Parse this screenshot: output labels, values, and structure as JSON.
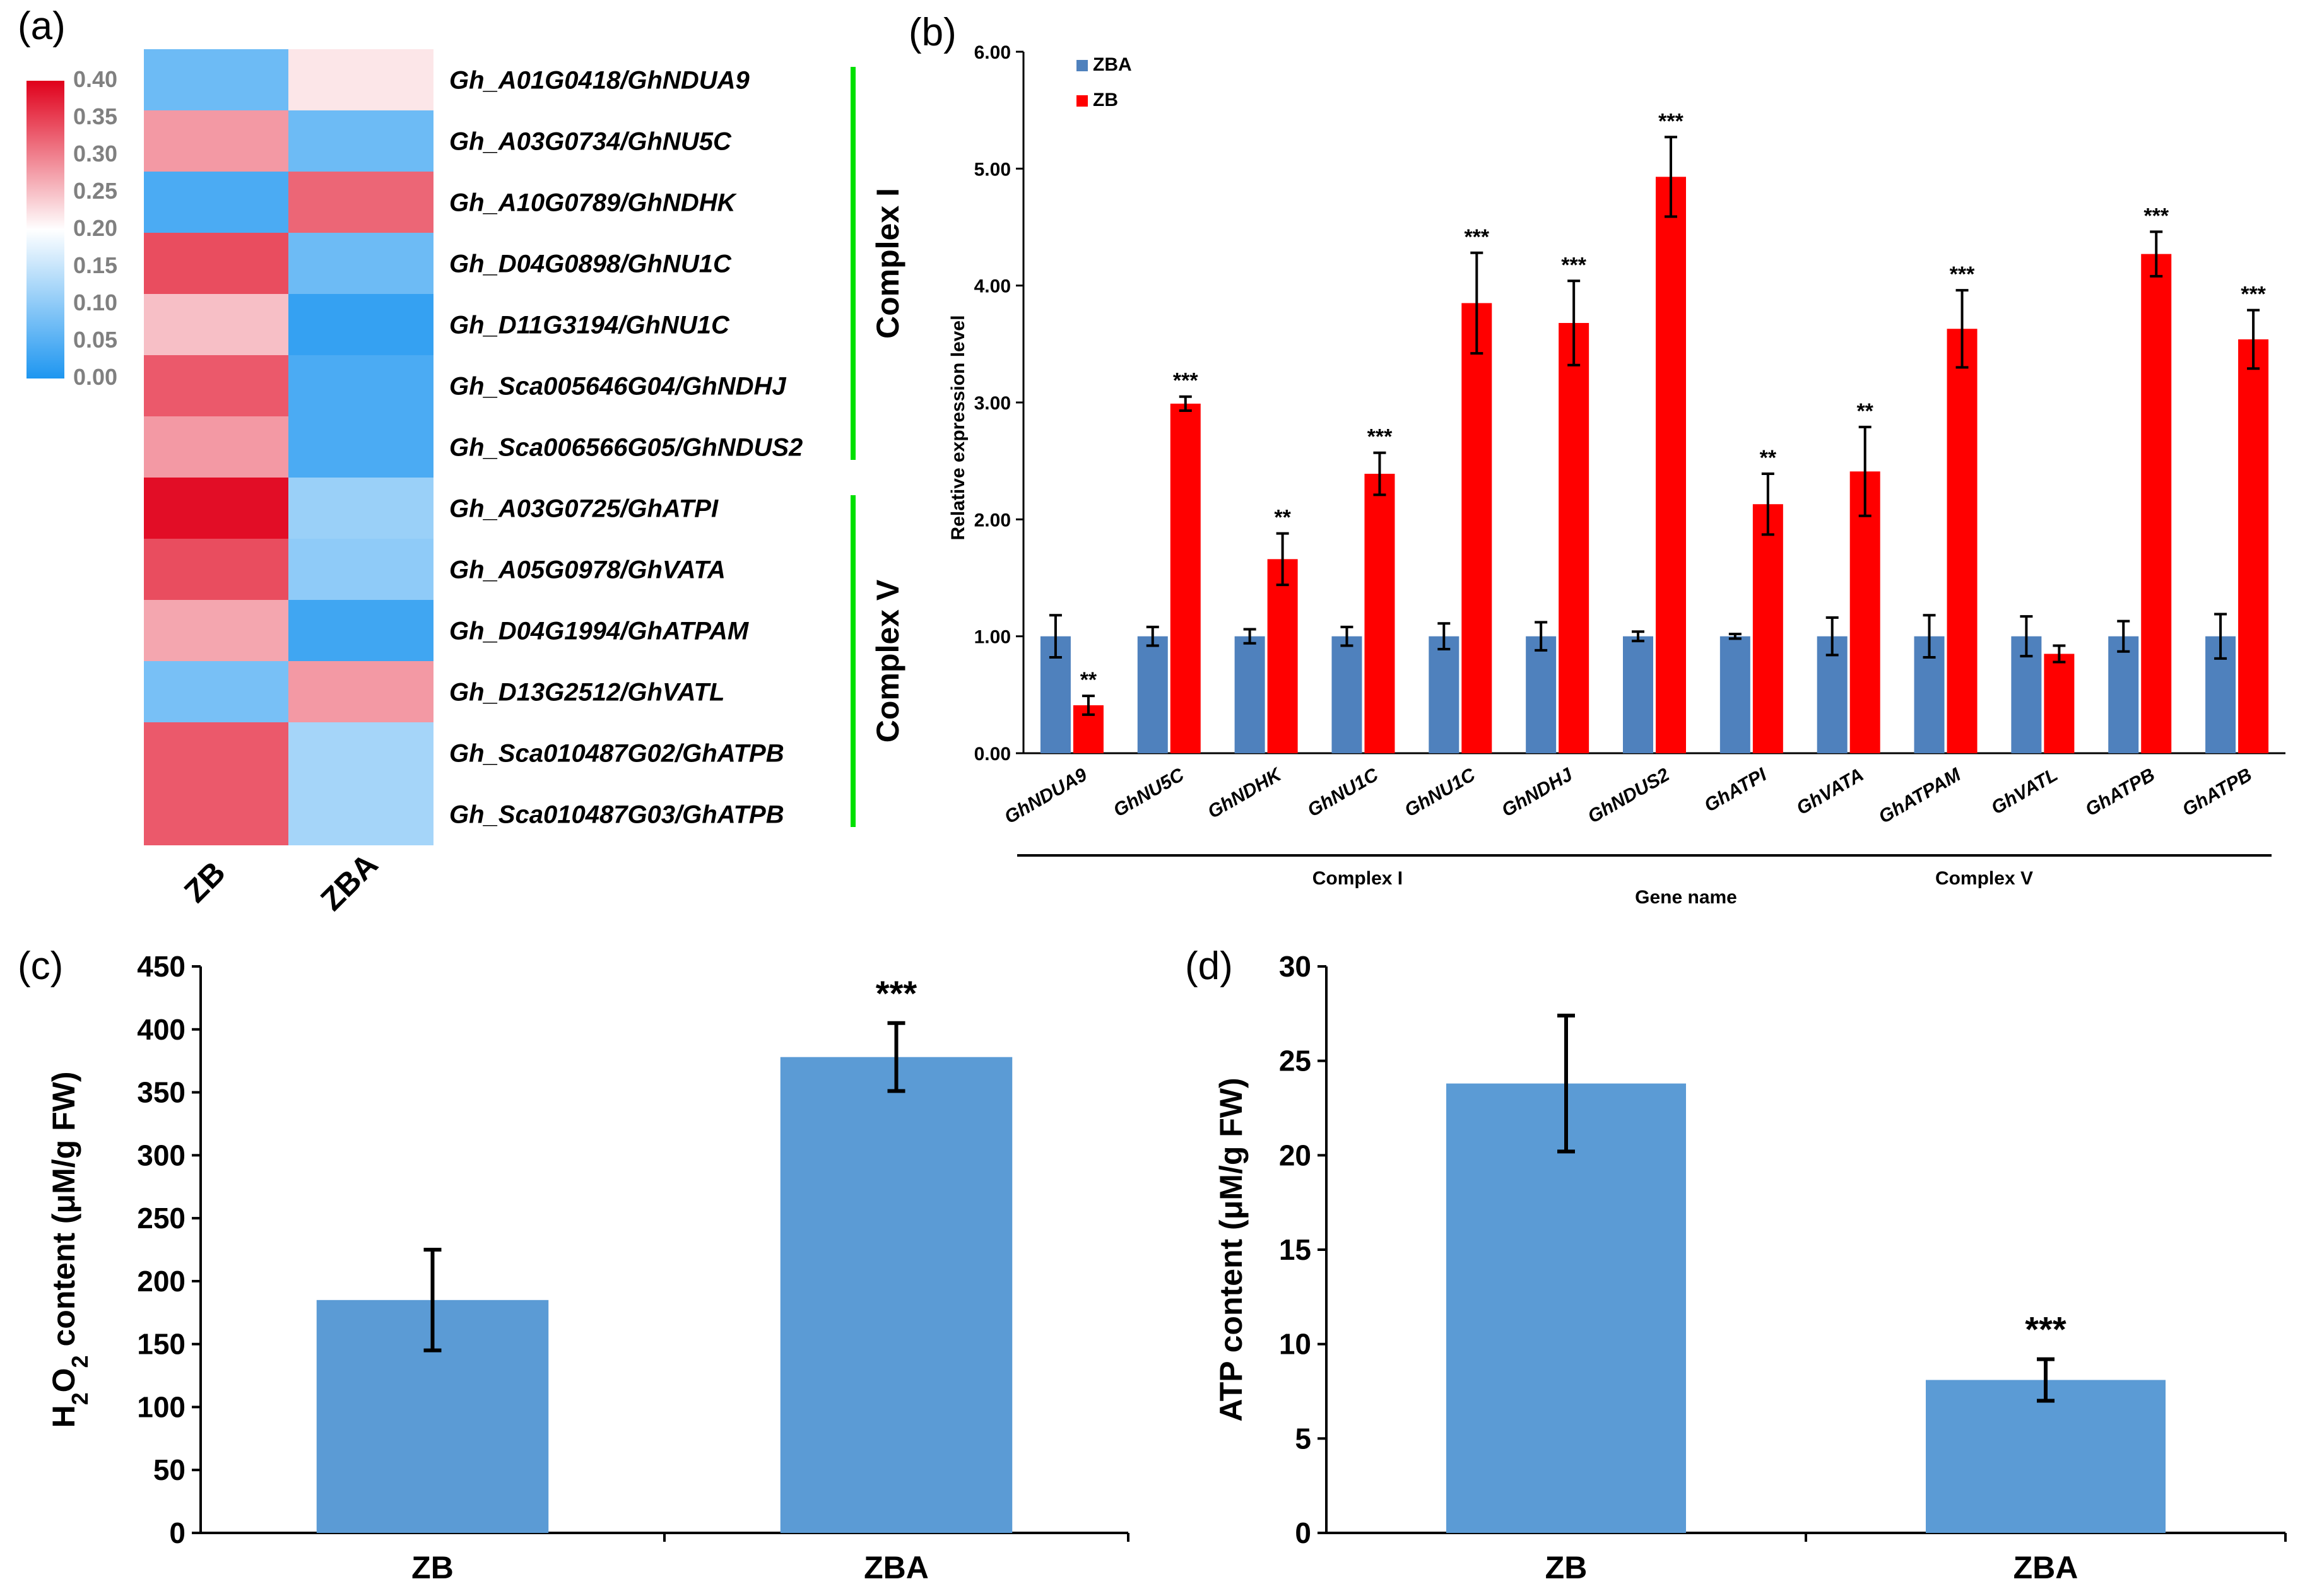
{
  "panels": {
    "a": "(a)",
    "b": "(b)",
    "c": "(c)",
    "d": "(d)"
  },
  "heatmap": {
    "samples": [
      "ZB",
      "ZBA"
    ],
    "colorbar_ticks": [
      "0.40",
      "0.35",
      "0.30",
      "0.25",
      "0.20",
      "0.15",
      "0.10",
      "0.05",
      "0.00"
    ],
    "colorbar_range": [
      0,
      0.4
    ],
    "colors": {
      "low": "#1e96f0",
      "mid": "#ffffff",
      "high": "#e0001b"
    },
    "genes": [
      {
        "label": "Gh_A01G0418/GhNDUA9",
        "values": [
          0.07,
          0.22
        ]
      },
      {
        "label": "Gh_A03G0734/GhNU5C",
        "values": [
          0.28,
          0.07
        ]
      },
      {
        "label": "Gh_A10G0789/GhNDHK",
        "values": [
          0.04,
          0.32
        ]
      },
      {
        "label": "Gh_D04G0898/GhNU1C",
        "values": [
          0.34,
          0.07
        ]
      },
      {
        "label": "Gh_D11G3194/GhNU1C",
        "values": [
          0.25,
          0.02
        ]
      },
      {
        "label": "Gh_Sca005646G04/GhNDHJ",
        "values": [
          0.33,
          0.04
        ]
      },
      {
        "label": "Gh_Sca006566G05/GhNDUS2",
        "values": [
          0.28,
          0.04
        ]
      },
      {
        "label": "Gh_A03G0725/GhATPI",
        "values": [
          0.39,
          0.11
        ]
      },
      {
        "label": "Gh_A05G0978/GhVATA",
        "values": [
          0.34,
          0.1
        ]
      },
      {
        "label": "Gh_D04G1994/GhATPAM",
        "values": [
          0.27,
          0.03
        ]
      },
      {
        "label": "Gh_D13G2512/GhVATL",
        "values": [
          0.08,
          0.28
        ]
      },
      {
        "label": "Gh_Sca010487G02/GhATPB",
        "values": [
          0.33,
          0.12
        ]
      },
      {
        "label": "Gh_Sca010487G03/GhATPB",
        "values": [
          0.33,
          0.12
        ]
      }
    ],
    "groups": [
      {
        "name": "Complex I",
        "rows": [
          0,
          6
        ],
        "color": "#00e000"
      },
      {
        "name": "Complex V",
        "rows": [
          7,
          12
        ],
        "color": "#00e000"
      }
    ]
  },
  "chart_data": [
    {
      "type": "bar",
      "panel": "b",
      "categories": [
        "GhNDUA9",
        "GhNU5C",
        "GhNDHK",
        "GhNU1C",
        "GhNU1C",
        "GhNDHJ",
        "GhNDUS2",
        "GhATPI",
        "GhVATA",
        "GhATPAM",
        "GhVATL",
        "GhATPB",
        "GhATPB"
      ],
      "series": [
        {
          "name": "ZBA",
          "color": "#4f81bd",
          "values": [
            1.0,
            1.0,
            1.0,
            1.0,
            1.0,
            1.0,
            1.0,
            1.0,
            1.0,
            1.0,
            1.0,
            1.0,
            1.0
          ],
          "errors": [
            0.18,
            0.08,
            0.06,
            0.08,
            0.11,
            0.12,
            0.04,
            0.02,
            0.16,
            0.18,
            0.17,
            0.13,
            0.19
          ]
        },
        {
          "name": "ZB",
          "color": "#ff0000",
          "values": [
            0.41,
            2.99,
            1.66,
            2.39,
            3.85,
            3.68,
            4.93,
            2.13,
            2.41,
            3.63,
            0.85,
            4.27,
            3.54
          ],
          "errors": [
            0.08,
            0.06,
            0.22,
            0.18,
            0.43,
            0.36,
            0.34,
            0.26,
            0.38,
            0.33,
            0.07,
            0.19,
            0.25
          ]
        }
      ],
      "significance": [
        "**",
        "***",
        "**",
        "***",
        "***",
        "***",
        "***",
        "**",
        "**",
        "***",
        "",
        "***",
        "***"
      ],
      "ylabel": "Relative expression level",
      "xlabel": "Gene name",
      "ylim": [
        0,
        6
      ],
      "yticks": [
        "0.00",
        "1.00",
        "2.00",
        "3.00",
        "4.00",
        "5.00",
        "6.00"
      ],
      "groups": [
        {
          "name": "Complex I",
          "from": 0,
          "to": 6
        },
        {
          "name": "Complex V",
          "from": 7,
          "to": 12
        }
      ],
      "legend": "top-left"
    },
    {
      "type": "bar",
      "panel": "c",
      "categories": [
        "ZB",
        "ZBA"
      ],
      "values": [
        185,
        378
      ],
      "errors": [
        40,
        27
      ],
      "significance": [
        "",
        "***"
      ],
      "ylabel_parts": [
        "H",
        "2",
        "O",
        "2",
        " content (μM/g FW)"
      ],
      "ylim": [
        0,
        450
      ],
      "yticks": [
        "0",
        "50",
        "100",
        "150",
        "200",
        "250",
        "300",
        "350",
        "400",
        "450"
      ],
      "color": "#5b9bd5"
    },
    {
      "type": "bar",
      "panel": "d",
      "categories": [
        "ZB",
        "ZBA"
      ],
      "values": [
        23.8,
        8.1
      ],
      "errors": [
        3.6,
        1.1
      ],
      "significance": [
        "",
        "***"
      ],
      "ylabel": "ATP content (μM/g FW)",
      "ylim": [
        0,
        30
      ],
      "yticks": [
        "0",
        "5",
        "10",
        "15",
        "20",
        "25",
        "30"
      ],
      "color": "#5b9bd5"
    }
  ]
}
